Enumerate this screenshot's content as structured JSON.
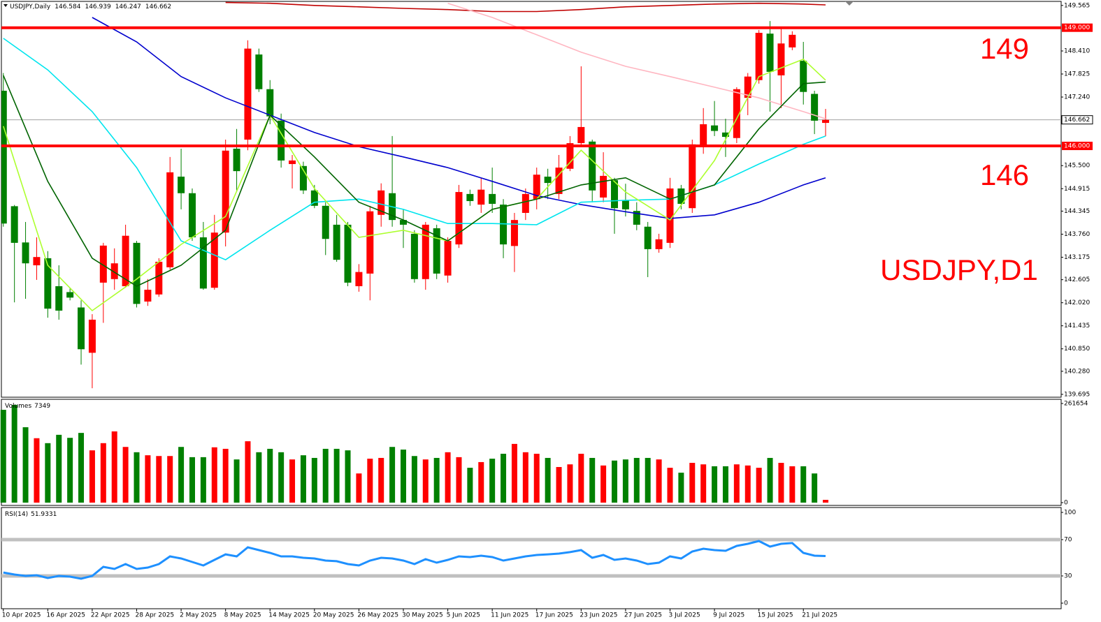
{
  "chart_data": {
    "type": "candlestick",
    "title": "USDJPY,Daily",
    "xlim": [
      -0.3,
      95.2
    ],
    "xticks": [
      {
        "value": 0,
        "label": "10 Apr 2025"
      },
      {
        "value": 4,
        "label": "16 Apr 2025"
      },
      {
        "value": 8,
        "label": "22 Apr 2025"
      },
      {
        "value": 12,
        "label": "28 Apr 2025"
      },
      {
        "value": 16,
        "label": "2 May 2025"
      },
      {
        "value": 20,
        "label": "8 May 2025"
      },
      {
        "value": 24,
        "label": "14 May 2025"
      },
      {
        "value": 28,
        "label": "20 May 2025"
      },
      {
        "value": 32,
        "label": "26 May 2025"
      },
      {
        "value": 36,
        "label": "30 May 2025"
      },
      {
        "value": 40,
        "label": "5 Jun 2025"
      },
      {
        "value": 44,
        "label": "11 Jun 2025"
      },
      {
        "value": 48,
        "label": "17 Jun 2025"
      },
      {
        "value": 52,
        "label": "23 Jun 2025"
      },
      {
        "value": 56,
        "label": "27 Jun 2025"
      },
      {
        "value": 60,
        "label": "3 Jul 2025"
      },
      {
        "value": 64,
        "label": "9 Jul 2025"
      },
      {
        "value": 68,
        "label": "15 Jul 2025"
      },
      {
        "value": 72,
        "label": "21 Jul 2025"
      }
    ],
    "ylim": [
      139.64,
      149.65
    ],
    "yticks": [
      {
        "value": 149.565,
        "label": "149.565"
      },
      {
        "value": 148.41,
        "label": "148.410"
      },
      {
        "value": 147.825,
        "label": "147.825"
      },
      {
        "value": 147.24,
        "label": "147.240"
      },
      {
        "value": 145.5,
        "label": "145.500"
      },
      {
        "value": 144.915,
        "label": "144.915"
      },
      {
        "value": 144.345,
        "label": "144.345"
      },
      {
        "value": 143.76,
        "label": "143.760"
      },
      {
        "value": 143.175,
        "label": "143.175"
      },
      {
        "value": 142.605,
        "label": "142.605"
      },
      {
        "value": 142.02,
        "label": "142.020"
      },
      {
        "value": 141.435,
        "label": "141.435"
      },
      {
        "value": 140.85,
        "label": "140.850"
      },
      {
        "value": 140.28,
        "label": "140.280"
      },
      {
        "value": 139.695,
        "label": "139.695"
      }
    ],
    "up_color": "#ff0000",
    "down_color": "#008000",
    "candles": {
      "open": [
        147.4,
        144.47,
        143.55,
        142.97,
        143.15,
        142.44,
        142.29,
        141.9,
        140.75,
        142.53,
        142.62,
        142.44,
        143.54,
        142.05,
        142.23,
        142.92,
        145.22,
        144.8,
        143.68,
        142.4,
        143.8,
        145.93,
        146.16,
        148.32,
        147.44,
        146.64,
        145.54,
        145.49,
        144.87,
        144.48,
        144.0,
        144.0,
        142.44,
        142.76,
        144.25,
        144.8,
        144.12,
        143.77,
        142.62,
        143.91,
        142.71,
        143.5,
        144.78,
        144.51,
        144.78,
        144.51,
        143.46,
        144.3,
        144.65,
        145.22,
        144.78,
        145.42,
        146.07,
        146.11,
        144.69,
        145.13,
        144.62,
        144.35,
        143.95,
        143.38,
        143.54,
        144.92,
        144.42,
        145.98,
        146.52,
        146.34,
        146.2,
        147.22,
        147.67,
        148.85,
        147.79,
        148.5,
        148.16,
        147.32,
        146.584
      ],
      "high": [
        147.85,
        144.5,
        144.07,
        143.68,
        143.33,
        142.97,
        142.38,
        142.08,
        141.73,
        143.54,
        143.4,
        144.0,
        143.59,
        142.62,
        143.15,
        145.72,
        145.93,
        144.92,
        144.07,
        144.25,
        146.16,
        146.43,
        148.68,
        148.47,
        147.67,
        146.82,
        145.77,
        145.6,
        145.01,
        144.57,
        144.25,
        144.07,
        143.0,
        144.48,
        145.05,
        146.25,
        144.39,
        143.86,
        144.07,
        144.0,
        143.68,
        145.01,
        144.89,
        145.19,
        145.45,
        144.65,
        144.3,
        144.92,
        145.45,
        145.42,
        145.77,
        146.25,
        148.02,
        146.16,
        145.84,
        145.19,
        145.04,
        144.57,
        144.07,
        143.77,
        145.19,
        145.01,
        146.16,
        146.96,
        147.14,
        146.69,
        147.49,
        147.85,
        148.94,
        149.17,
        149.03,
        148.91,
        148.64,
        147.4,
        146.939
      ],
      "low": [
        143.95,
        142.03,
        142.12,
        142.6,
        141.64,
        141.59,
        142.08,
        140.45,
        139.85,
        141.51,
        142.35,
        142.4,
        141.9,
        141.94,
        142.17,
        142.86,
        144.39,
        143.59,
        142.35,
        142.35,
        143.45,
        144.83,
        145.89,
        147.37,
        146.55,
        145.45,
        144.92,
        144.78,
        144.42,
        143.23,
        143.06,
        142.44,
        142.3,
        142.08,
        143.95,
        143.95,
        143.41,
        142.53,
        142.35,
        142.62,
        142.53,
        143.41,
        144.48,
        144.3,
        144.3,
        143.15,
        142.8,
        144.12,
        144.39,
        144.65,
        144.65,
        145.36,
        145.98,
        144.57,
        144.57,
        143.77,
        144.21,
        143.86,
        142.67,
        143.29,
        143.41,
        144.39,
        144.3,
        145.8,
        146.25,
        145.72,
        146.07,
        146.78,
        147.58,
        146.87,
        146.96,
        148.43,
        147.05,
        146.3,
        146.247
      ],
      "close": [
        144.03,
        143.54,
        143.02,
        143.18,
        141.87,
        141.82,
        142.15,
        140.84,
        141.59,
        143.47,
        143.02,
        143.72,
        141.99,
        142.35,
        143.06,
        145.33,
        144.8,
        143.68,
        142.38,
        143.8,
        145.88,
        145.36,
        148.47,
        147.44,
        146.75,
        145.63,
        145.63,
        144.87,
        144.48,
        143.64,
        143.11,
        142.53,
        142.8,
        144.34,
        144.87,
        144.12,
        144.0,
        142.62,
        144.0,
        142.76,
        143.59,
        144.83,
        144.6,
        144.89,
        144.53,
        143.5,
        144.12,
        144.78,
        145.27,
        145.06,
        145.45,
        146.07,
        146.48,
        144.87,
        145.24,
        144.42,
        144.39,
        144.0,
        143.38,
        143.63,
        144.92,
        144.53,
        146.04,
        146.55,
        146.38,
        146.23,
        147.44,
        147.76,
        148.87,
        147.88,
        148.6,
        148.82,
        147.37,
        146.64,
        146.662
      ]
    },
    "current_price_color": "#a0a0a0",
    "hlines": [
      {
        "value": 149,
        "label": "149.000",
        "color": "#ff0000"
      },
      {
        "value": 146,
        "label": "146.000",
        "color": "#ff0000"
      }
    ],
    "overlays": [
      {
        "color": "#c00000",
        "x": [
          0,
          4,
          8,
          12,
          16,
          20,
          24,
          28,
          32,
          36,
          40,
          44,
          48,
          52,
          56,
          60,
          64,
          68,
          72,
          74
        ],
        "values": [
          null,
          null,
          null,
          null,
          null,
          149.64,
          149.62,
          149.565,
          149.53,
          149.49,
          149.46,
          149.41,
          149.41,
          149.46,
          149.53,
          149.565,
          149.6,
          149.62,
          149.6,
          149.58
        ]
      },
      {
        "color": "#ffb6c1",
        "x": [
          0,
          4,
          8,
          12,
          16,
          20,
          24,
          28,
          32,
          36,
          40,
          44,
          48,
          52,
          56,
          60,
          64,
          68,
          72,
          74
        ],
        "values": [
          null,
          null,
          null,
          null,
          null,
          null,
          null,
          null,
          null,
          null,
          149.62,
          149.26,
          148.82,
          148.38,
          148.02,
          147.76,
          147.49,
          147.22,
          146.87,
          146.69
        ]
      },
      {
        "color": "#0000cd",
        "x": [
          0,
          4,
          8,
          12,
          16,
          20,
          24,
          28,
          32,
          36,
          40,
          44,
          48,
          52,
          56,
          60,
          64,
          68,
          72,
          74
        ],
        "values": [
          null,
          null,
          149.26,
          148.64,
          147.76,
          147.22,
          146.78,
          146.34,
          145.98,
          145.72,
          145.45,
          145.1,
          144.74,
          144.51,
          144.33,
          144.16,
          144.25,
          144.57,
          145.01,
          145.19
        ]
      },
      {
        "color": "#00e5ee",
        "x": [
          0,
          4,
          8,
          12,
          16,
          20,
          24,
          28,
          32,
          36,
          40,
          44,
          48,
          52,
          56,
          60,
          64,
          68,
          72,
          74
        ],
        "values": [
          148.73,
          147.93,
          146.87,
          145.45,
          143.59,
          143.11,
          143.86,
          144.57,
          144.65,
          144.39,
          144.03,
          144.03,
          144.0,
          144.57,
          144.62,
          144.65,
          145.01,
          145.54,
          146.04,
          146.25
        ]
      },
      {
        "color": "#adff2f",
        "x": [
          0,
          4,
          8,
          12,
          16,
          20,
          24,
          28,
          32,
          36,
          40,
          44,
          48,
          52,
          56,
          60,
          64,
          68,
          72,
          74
        ],
        "values": [
          146.5,
          142.97,
          141.82,
          142.62,
          143.5,
          144.21,
          146.78,
          144.92,
          143.68,
          143.86,
          143.59,
          144.39,
          144.65,
          145.89,
          144.83,
          144.12,
          145.63,
          147.76,
          148.2,
          147.67
        ]
      },
      {
        "color": "#006400",
        "x": [
          0,
          4,
          8,
          12,
          16,
          20,
          24,
          28,
          32,
          36,
          40,
          44,
          48,
          52,
          56,
          60,
          64,
          68,
          72,
          74
        ],
        "values": [
          147.79,
          145.1,
          143.15,
          142.44,
          142.97,
          143.86,
          146.78,
          145.72,
          144.57,
          144.12,
          143.59,
          144.39,
          144.65,
          145.01,
          145.19,
          144.65,
          145.01,
          146.43,
          147.58,
          147.62
        ]
      }
    ],
    "annotations": [
      "149",
      "146",
      "USDJPY,D1"
    ],
    "volume": {
      "title": "Volumes",
      "ylim": [
        0,
        261654
      ],
      "yticks": [
        0,
        261654
      ],
      "values": [
        245000,
        258000,
        199000,
        170000,
        157000,
        179000,
        171000,
        184000,
        138000,
        157000,
        188000,
        147000,
        133000,
        125000,
        123000,
        123000,
        147000,
        120000,
        120000,
        146000,
        142000,
        114000,
        162000,
        133000,
        142000,
        133000,
        114000,
        125000,
        118000,
        142000,
        142000,
        138000,
        77000,
        116000,
        118000,
        147000,
        140000,
        123000,
        114000,
        118000,
        133000,
        120000,
        92000,
        107000,
        116000,
        129000,
        155000,
        133000,
        129000,
        118000,
        94000,
        101000,
        129000,
        118000,
        98000,
        111000,
        114000,
        118000,
        118000,
        114000,
        92000,
        79000,
        105000,
        101000,
        96000,
        96000,
        101000,
        98000,
        92000,
        118000,
        105000,
        96000,
        96000,
        77000,
        7349
      ]
    },
    "rsi": {
      "title": "RSI(14)",
      "ylim": [
        0,
        100
      ],
      "yticks": [
        0,
        30,
        70,
        100
      ],
      "levels": [
        70,
        30
      ],
      "level_color": "#c0c0c0",
      "color": "#1e90ff",
      "values": [
        33.8,
        31.5,
        30,
        30.8,
        27.7,
        30,
        29.2,
        26.9,
        30,
        40,
        37.7,
        43.1,
        37.7,
        39.2,
        43.1,
        51.5,
        49.2,
        45.4,
        41.5,
        47.7,
        53.8,
        51.5,
        61.5,
        58.5,
        55.4,
        51.5,
        51.5,
        50,
        49.2,
        46.9,
        46.2,
        43.1,
        41.5,
        46.9,
        50,
        49.2,
        46.9,
        43.1,
        48.5,
        44.6,
        47.7,
        51.5,
        50.8,
        52.3,
        50.8,
        46.9,
        49.2,
        51.5,
        53.1,
        53.8,
        54.6,
        56.2,
        58.5,
        50,
        53.1,
        47.7,
        49.2,
        46.9,
        43.1,
        44.6,
        51.5,
        49.2,
        56.9,
        60,
        58.5,
        57.7,
        63.1,
        65.4,
        68.5,
        62.3,
        65.4,
        66.2,
        55.4,
        52.3,
        51.9331
      ]
    }
  }
}
